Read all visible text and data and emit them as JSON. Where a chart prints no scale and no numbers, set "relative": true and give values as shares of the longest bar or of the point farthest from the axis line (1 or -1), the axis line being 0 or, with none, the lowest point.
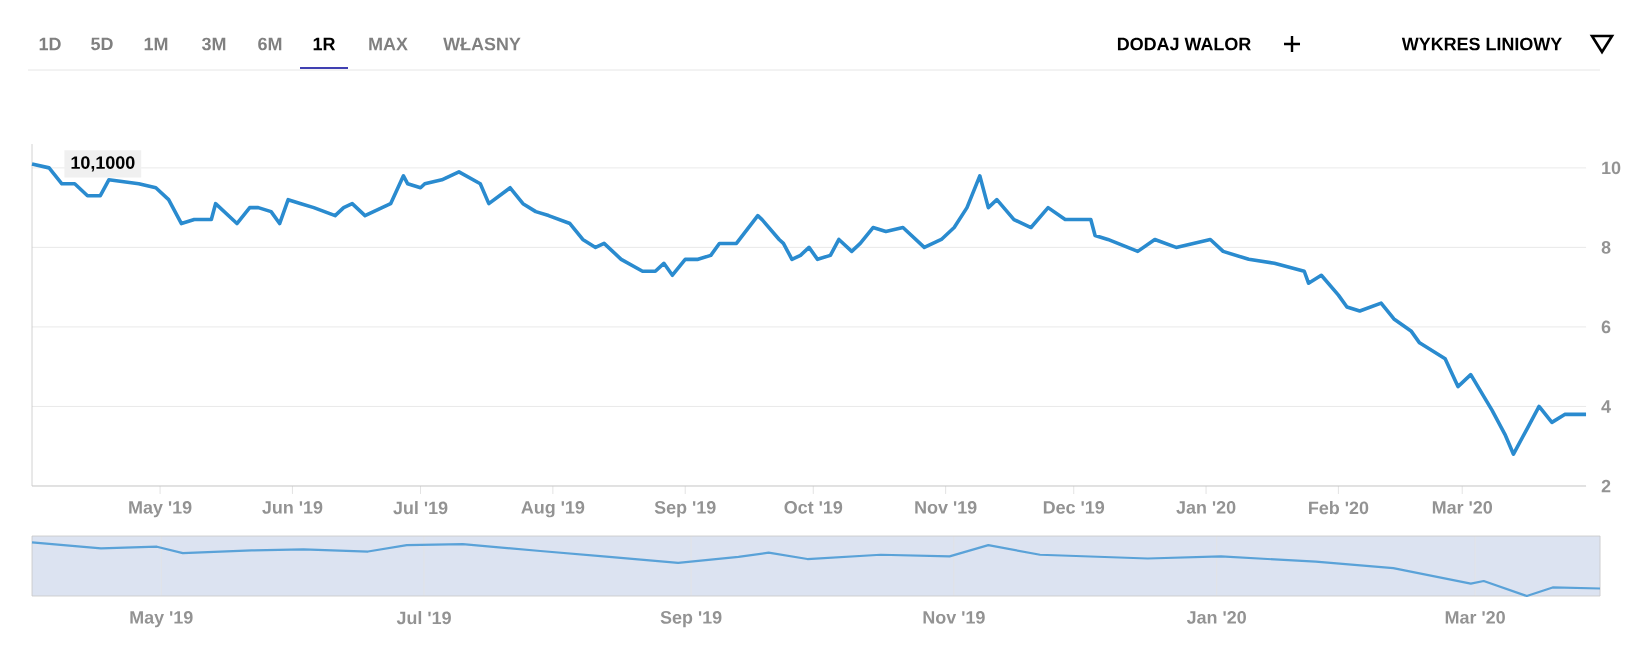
{
  "chart_data": [
    {
      "type": "line",
      "color": "#2a8bcf",
      "grid": "y",
      "xlim": [
        "2019-04-01",
        "2020-03-30"
      ],
      "ylim": [
        2,
        10.6
      ],
      "xticks": [
        {
          "value": "2019-05-01",
          "label": "May '19"
        },
        {
          "value": "2019-06-01",
          "label": "Jun '19"
        },
        {
          "value": "2019-07-01",
          "label": "Jul '19"
        },
        {
          "value": "2019-08-01",
          "label": "Aug '19"
        },
        {
          "value": "2019-09-01",
          "label": "Sep '19"
        },
        {
          "value": "2019-10-01",
          "label": "Oct '19"
        },
        {
          "value": "2019-11-01",
          "label": "Nov '19"
        },
        {
          "value": "2019-12-01",
          "label": "Dec '19"
        },
        {
          "value": "2020-01-01",
          "label": "Jan '20"
        },
        {
          "value": "2020-02-01",
          "label": "Feb '20"
        },
        {
          "value": "2020-03-01",
          "label": "Mar '20"
        }
      ],
      "yticks": [
        2,
        4,
        6,
        8,
        10
      ],
      "x": [
        "2019-04-01",
        "2019-04-05",
        "2019-04-08",
        "2019-04-11",
        "2019-04-14",
        "2019-04-17",
        "2019-04-19",
        "2019-04-26",
        "2019-04-30",
        "2019-05-03",
        "2019-05-06",
        "2019-05-09",
        "2019-05-13",
        "2019-05-14",
        "2019-05-19",
        "2019-05-22",
        "2019-05-24",
        "2019-05-27",
        "2019-05-29",
        "2019-05-31",
        "2019-06-03",
        "2019-06-06",
        "2019-06-11",
        "2019-06-13",
        "2019-06-15",
        "2019-06-18",
        "2019-06-20",
        "2019-06-24",
        "2019-06-27",
        "2019-06-28",
        "2019-07-01",
        "2019-07-02",
        "2019-07-06",
        "2019-07-10",
        "2019-07-15",
        "2019-07-17",
        "2019-07-22",
        "2019-07-25",
        "2019-07-28",
        "2019-07-31",
        "2019-08-05",
        "2019-08-08",
        "2019-08-11",
        "2019-08-13",
        "2019-08-17",
        "2019-08-22",
        "2019-08-25",
        "2019-08-27",
        "2019-08-29",
        "2019-09-01",
        "2019-09-04",
        "2019-09-07",
        "2019-09-09",
        "2019-09-12",
        "2019-09-13",
        "2019-09-18",
        "2019-09-19",
        "2019-09-23",
        "2019-09-24",
        "2019-09-26",
        "2019-09-28",
        "2019-09-30",
        "2019-10-02",
        "2019-10-05",
        "2019-10-07",
        "2019-10-10",
        "2019-10-12",
        "2019-10-15",
        "2019-10-18",
        "2019-10-22",
        "2019-10-27",
        "2019-10-31",
        "2019-11-03",
        "2019-11-06",
        "2019-11-09",
        "2019-11-11",
        "2019-11-13",
        "2019-11-17",
        "2019-11-21",
        "2019-11-25",
        "2019-11-29",
        "2019-12-05",
        "2019-12-06",
        "2019-12-09",
        "2019-12-16",
        "2019-12-20",
        "2019-12-25",
        "2020-01-02",
        "2020-01-05",
        "2020-01-11",
        "2020-01-17",
        "2020-01-24",
        "2020-01-25",
        "2020-01-28",
        "2020-02-01",
        "2020-02-03",
        "2020-02-06",
        "2020-02-11",
        "2020-02-14",
        "2020-02-18",
        "2020-02-20",
        "2020-02-26",
        "2020-02-29",
        "2020-03-03",
        "2020-03-08",
        "2020-03-11",
        "2020-03-13",
        "2020-03-16",
        "2020-03-19",
        "2020-03-22",
        "2020-03-25",
        "2020-03-27",
        "2020-03-30"
      ],
      "values": [
        10.1,
        10.0,
        9.6,
        9.6,
        9.3,
        9.3,
        9.7,
        9.6,
        9.5,
        9.2,
        8.6,
        8.7,
        8.7,
        9.1,
        8.6,
        9.0,
        9.0,
        8.9,
        8.6,
        9.2,
        9.1,
        9.0,
        8.8,
        9.0,
        9.1,
        8.8,
        8.9,
        9.1,
        9.8,
        9.6,
        9.5,
        9.6,
        9.7,
        9.9,
        9.6,
        9.1,
        9.5,
        9.1,
        8.9,
        8.8,
        8.6,
        8.2,
        8.0,
        8.1,
        7.7,
        7.4,
        7.4,
        7.6,
        7.3,
        7.7,
        7.7,
        7.8,
        8.1,
        8.1,
        8.1,
        8.8,
        8.7,
        8.2,
        8.1,
        7.7,
        7.8,
        8.0,
        7.7,
        7.8,
        8.2,
        7.9,
        8.1,
        8.5,
        8.4,
        8.5,
        8.0,
        8.2,
        8.5,
        9.0,
        9.8,
        9.0,
        9.2,
        8.7,
        8.5,
        9.0,
        8.7,
        8.7,
        8.3,
        8.2,
        7.9,
        8.2,
        8.0,
        8.2,
        7.9,
        7.7,
        7.6,
        7.4,
        7.1,
        7.3,
        6.8,
        6.5,
        6.4,
        6.6,
        6.2,
        5.9,
        5.6,
        5.2,
        4.5,
        4.8,
        3.9,
        3.3,
        2.8,
        3.4,
        4.0,
        3.6,
        3.8,
        3.8,
        3.8
      ],
      "annotations": [
        "1D",
        "5D",
        "1M",
        "3M",
        "6M",
        "1R",
        "MAX",
        "WŁASNY",
        "DODAJ WALOR",
        "WYKRES LINIOWY",
        {
          "text": "10,1000",
          "x": "2019-04-01",
          "y": 10.1
        }
      ]
    },
    {
      "type": "line",
      "color": "#5aa2d8",
      "relative": true,
      "grid": "x",
      "xlim": [
        "2019-04-01",
        "2020-03-30"
      ],
      "xticks": [
        {
          "value": "2019-05-01",
          "label": "May '19"
        },
        {
          "value": "2019-07-01",
          "label": "Jul '19"
        },
        {
          "value": "2019-09-01",
          "label": "Sep '19"
        },
        {
          "value": "2019-11-01",
          "label": "Nov '19"
        },
        {
          "value": "2020-01-01",
          "label": "Jan '20"
        },
        {
          "value": "2020-03-01",
          "label": "Mar '20"
        }
      ],
      "tick_labels": "x",
      "x": [
        "2019-04-01",
        "2019-04-17",
        "2019-04-30",
        "2019-05-06",
        "2019-05-22",
        "2019-06-03",
        "2019-06-18",
        "2019-06-27",
        "2019-07-10",
        "2019-07-28",
        "2019-08-13",
        "2019-08-29",
        "2019-09-12",
        "2019-09-19",
        "2019-09-28",
        "2019-10-15",
        "2019-10-31",
        "2019-11-09",
        "2019-11-21",
        "2019-12-16",
        "2020-01-02",
        "2020-01-24",
        "2020-02-11",
        "2020-02-29",
        "2020-03-03",
        "2020-03-13",
        "2020-03-19",
        "2020-03-30"
      ],
      "values": [
        1.0,
        0.89,
        0.92,
        0.8,
        0.85,
        0.87,
        0.83,
        0.95,
        0.97,
        0.84,
        0.73,
        0.62,
        0.73,
        0.81,
        0.69,
        0.77,
        0.74,
        0.95,
        0.77,
        0.7,
        0.74,
        0.64,
        0.52,
        0.23,
        0.28,
        0.0,
        0.16,
        0.14
      ]
    }
  ]
}
